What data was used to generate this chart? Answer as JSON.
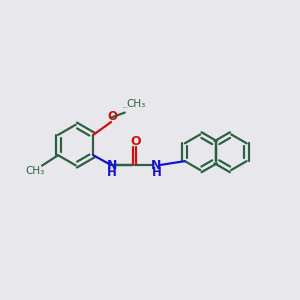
{
  "background_color": "#e8e8ec",
  "bond_color": "#2d6040",
  "nitrogen_color": "#1515cc",
  "oxygen_color": "#cc1010",
  "line_width": 1.6,
  "fig_size": [
    3.0,
    3.0
  ],
  "dpi": 100,
  "xlim": [
    0,
    12
  ],
  "ylim": [
    0,
    10
  ]
}
